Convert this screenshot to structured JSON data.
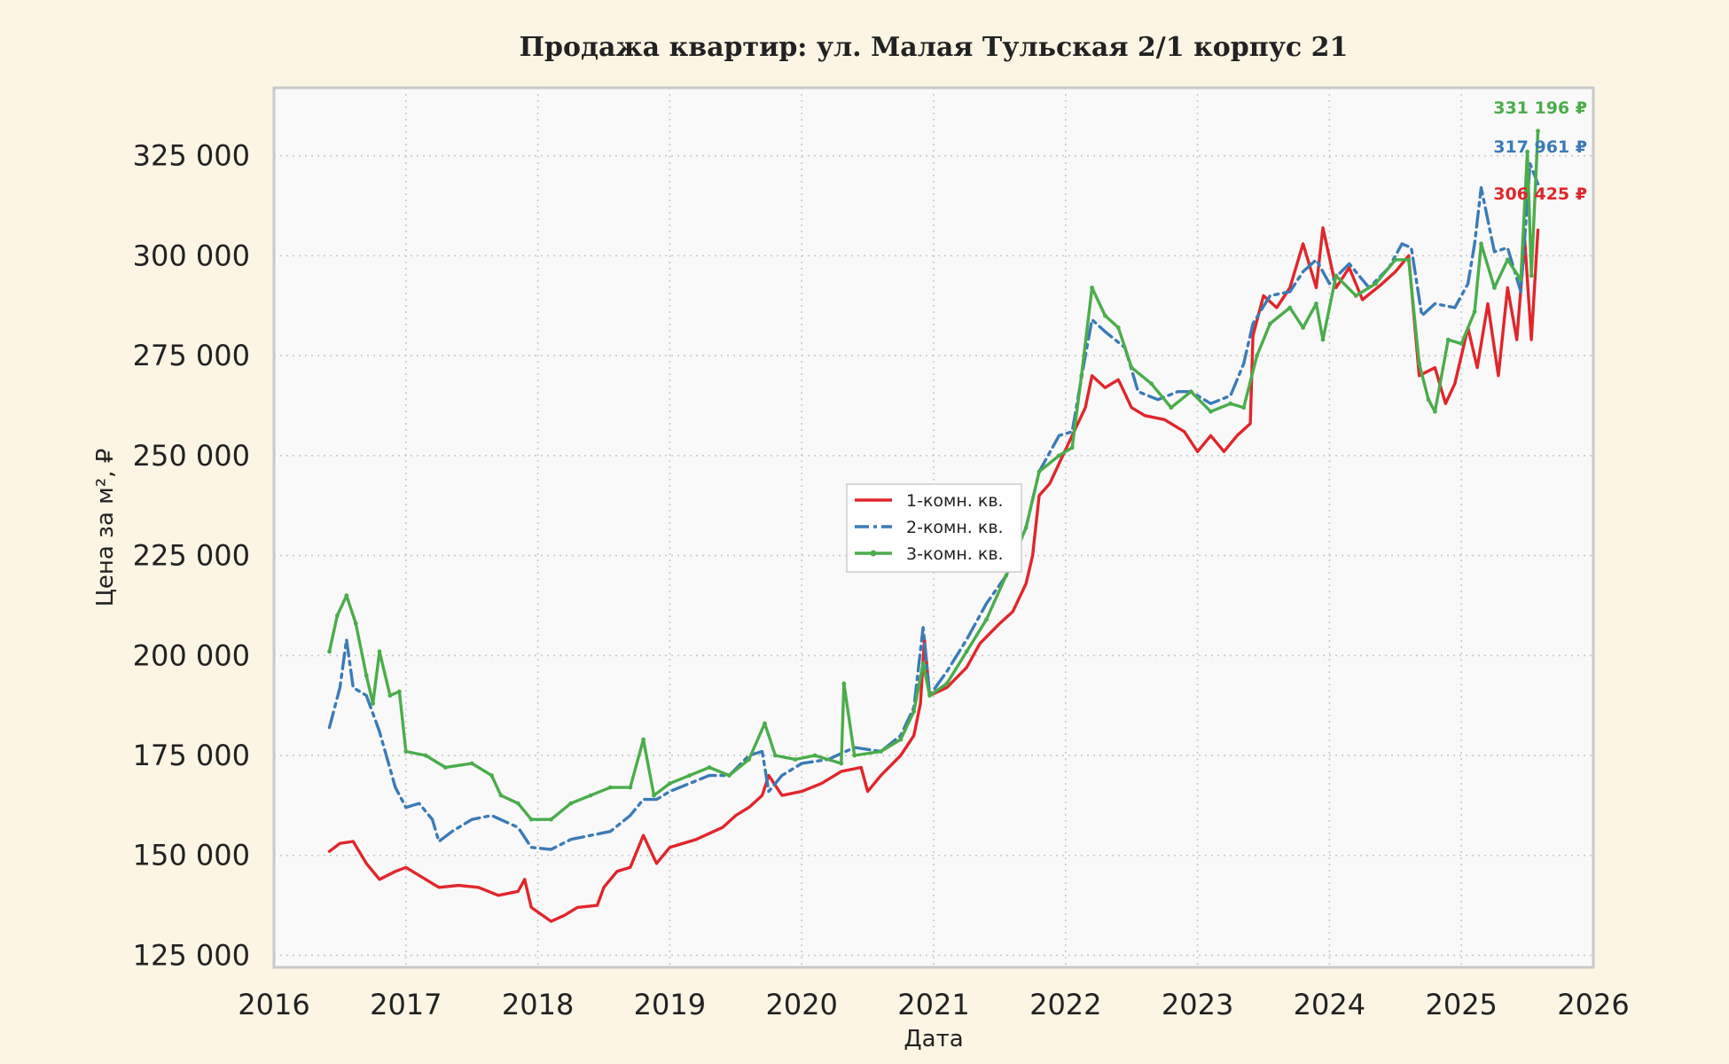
{
  "chart_data": {
    "type": "line",
    "title": "Продажа квартир: ул. Малая Тульская 2/1 корпус 21",
    "xlabel": "Дата",
    "ylabel": "Цена за м², ₽",
    "xlim": [
      2016,
      2026
    ],
    "ylim": [
      122000,
      342000
    ],
    "x_ticks": [
      2016,
      2017,
      2018,
      2019,
      2020,
      2021,
      2022,
      2023,
      2024,
      2025,
      2026
    ],
    "x_tick_labels": [
      "2016",
      "2017",
      "2018",
      "2019",
      "2020",
      "2021",
      "2022",
      "2023",
      "2024",
      "2025",
      "2026"
    ],
    "y_ticks": [
      125000,
      150000,
      175000,
      200000,
      225000,
      250000,
      275000,
      300000,
      325000
    ],
    "y_tick_labels": [
      "125 000",
      "150 000",
      "175 000",
      "200 000",
      "225 000",
      "250 000",
      "275 000",
      "300 000",
      "325 000"
    ],
    "grid": true,
    "legend_position": "center-left",
    "series": [
      {
        "name": "1-комн. кв.",
        "color": "#e0262b",
        "style": "solid",
        "end_label": "306 425 ₽",
        "points": [
          [
            2016.42,
            151000
          ],
          [
            2016.5,
            153000
          ],
          [
            2016.6,
            153500
          ],
          [
            2016.7,
            148000
          ],
          [
            2016.8,
            144000
          ],
          [
            2016.92,
            146000
          ],
          [
            2017.0,
            147000
          ],
          [
            2017.1,
            145000
          ],
          [
            2017.25,
            142000
          ],
          [
            2017.4,
            142500
          ],
          [
            2017.55,
            142000
          ],
          [
            2017.7,
            140000
          ],
          [
            2017.85,
            141000
          ],
          [
            2017.9,
            144000
          ],
          [
            2017.95,
            137000
          ],
          [
            2018.1,
            133500
          ],
          [
            2018.2,
            135000
          ],
          [
            2018.3,
            137000
          ],
          [
            2018.45,
            137500
          ],
          [
            2018.5,
            142000
          ],
          [
            2018.6,
            146000
          ],
          [
            2018.7,
            147000
          ],
          [
            2018.8,
            155000
          ],
          [
            2018.9,
            148000
          ],
          [
            2019.0,
            152000
          ],
          [
            2019.2,
            154000
          ],
          [
            2019.4,
            157000
          ],
          [
            2019.5,
            160000
          ],
          [
            2019.6,
            162000
          ],
          [
            2019.7,
            165000
          ],
          [
            2019.75,
            170000
          ],
          [
            2019.85,
            165000
          ],
          [
            2020.0,
            166000
          ],
          [
            2020.15,
            168000
          ],
          [
            2020.3,
            171000
          ],
          [
            2020.45,
            172000
          ],
          [
            2020.5,
            166000
          ],
          [
            2020.6,
            170000
          ],
          [
            2020.75,
            175000
          ],
          [
            2020.85,
            180000
          ],
          [
            2020.9,
            188000
          ],
          [
            2020.93,
            204000
          ],
          [
            2020.97,
            190000
          ],
          [
            2021.1,
            192000
          ],
          [
            2021.25,
            197000
          ],
          [
            2021.35,
            203000
          ],
          [
            2021.5,
            208000
          ],
          [
            2021.6,
            211000
          ],
          [
            2021.7,
            218000
          ],
          [
            2021.75,
            225000
          ],
          [
            2021.8,
            240000
          ],
          [
            2021.88,
            243000
          ],
          [
            2021.95,
            248000
          ],
          [
            2022.05,
            255000
          ],
          [
            2022.15,
            262000
          ],
          [
            2022.2,
            270000
          ],
          [
            2022.3,
            267000
          ],
          [
            2022.4,
            269000
          ],
          [
            2022.5,
            262000
          ],
          [
            2022.6,
            260000
          ],
          [
            2022.75,
            259000
          ],
          [
            2022.9,
            256000
          ],
          [
            2023.0,
            251000
          ],
          [
            2023.1,
            255000
          ],
          [
            2023.2,
            251000
          ],
          [
            2023.3,
            255000
          ],
          [
            2023.4,
            258000
          ],
          [
            2023.42,
            280000
          ],
          [
            2023.5,
            290000
          ],
          [
            2023.6,
            287000
          ],
          [
            2023.7,
            292000
          ],
          [
            2023.8,
            303000
          ],
          [
            2023.9,
            292000
          ],
          [
            2023.95,
            307000
          ],
          [
            2024.05,
            292000
          ],
          [
            2024.15,
            297000
          ],
          [
            2024.25,
            289000
          ],
          [
            2024.4,
            293000
          ],
          [
            2024.5,
            296000
          ],
          [
            2024.6,
            300000
          ],
          [
            2024.68,
            270000
          ],
          [
            2024.8,
            272000
          ],
          [
            2024.88,
            263000
          ],
          [
            2024.95,
            268000
          ],
          [
            2025.05,
            282000
          ],
          [
            2025.12,
            272000
          ],
          [
            2025.2,
            288000
          ],
          [
            2025.28,
            270000
          ],
          [
            2025.35,
            292000
          ],
          [
            2025.42,
            279000
          ],
          [
            2025.48,
            304000
          ],
          [
            2025.53,
            279000
          ],
          [
            2025.58,
            306425
          ]
        ]
      },
      {
        "name": "2-комн. кв.",
        "color": "#3a7bb7",
        "style": "dashdot",
        "end_label": "317 961 ₽",
        "points": [
          [
            2016.42,
            182000
          ],
          [
            2016.5,
            192000
          ],
          [
            2016.55,
            204000
          ],
          [
            2016.6,
            192000
          ],
          [
            2016.7,
            190000
          ],
          [
            2016.8,
            181000
          ],
          [
            2016.92,
            167000
          ],
          [
            2017.0,
            162000
          ],
          [
            2017.1,
            163000
          ],
          [
            2017.2,
            159000
          ],
          [
            2017.25,
            153500
          ],
          [
            2017.35,
            156000
          ],
          [
            2017.5,
            159000
          ],
          [
            2017.65,
            160000
          ],
          [
            2017.85,
            157000
          ],
          [
            2017.95,
            152000
          ],
          [
            2018.1,
            151500
          ],
          [
            2018.25,
            154000
          ],
          [
            2018.4,
            155000
          ],
          [
            2018.55,
            156000
          ],
          [
            2018.7,
            160000
          ],
          [
            2018.8,
            164000
          ],
          [
            2018.9,
            164000
          ],
          [
            2019.0,
            166000
          ],
          [
            2019.15,
            168000
          ],
          [
            2019.3,
            170000
          ],
          [
            2019.45,
            170000
          ],
          [
            2019.6,
            175000
          ],
          [
            2019.7,
            176000
          ],
          [
            2019.75,
            166000
          ],
          [
            2019.85,
            170000
          ],
          [
            2020.0,
            173000
          ],
          [
            2020.2,
            174000
          ],
          [
            2020.4,
            177000
          ],
          [
            2020.6,
            176000
          ],
          [
            2020.75,
            180000
          ],
          [
            2020.85,
            187000
          ],
          [
            2020.92,
            207000
          ],
          [
            2020.97,
            190000
          ],
          [
            2021.1,
            196000
          ],
          [
            2021.25,
            204000
          ],
          [
            2021.4,
            213000
          ],
          [
            2021.55,
            220000
          ],
          [
            2021.7,
            232000
          ],
          [
            2021.8,
            246000
          ],
          [
            2021.95,
            255000
          ],
          [
            2022.05,
            256000
          ],
          [
            2022.15,
            275000
          ],
          [
            2022.2,
            284000
          ],
          [
            2022.3,
            281000
          ],
          [
            2022.45,
            277000
          ],
          [
            2022.55,
            266000
          ],
          [
            2022.7,
            264000
          ],
          [
            2022.85,
            266000
          ],
          [
            2022.95,
            266000
          ],
          [
            2023.1,
            263000
          ],
          [
            2023.25,
            265000
          ],
          [
            2023.35,
            273000
          ],
          [
            2023.42,
            283000
          ],
          [
            2023.55,
            290000
          ],
          [
            2023.7,
            291000
          ],
          [
            2023.8,
            296000
          ],
          [
            2023.9,
            299000
          ],
          [
            2024.0,
            293000
          ],
          [
            2024.15,
            298000
          ],
          [
            2024.3,
            292000
          ],
          [
            2024.45,
            297000
          ],
          [
            2024.55,
            303000
          ],
          [
            2024.62,
            302000
          ],
          [
            2024.7,
            285000
          ],
          [
            2024.8,
            288000
          ],
          [
            2024.95,
            287000
          ],
          [
            2025.05,
            293000
          ],
          [
            2025.1,
            303000
          ],
          [
            2025.15,
            317000
          ],
          [
            2025.25,
            301000
          ],
          [
            2025.35,
            302000
          ],
          [
            2025.45,
            291000
          ],
          [
            2025.52,
            323000
          ],
          [
            2025.58,
            317961
          ]
        ]
      },
      {
        "name": "3-комн. кв.",
        "color": "#4aad4a",
        "style": "solid-marker",
        "end_label": "331 196 ₽",
        "points": [
          [
            2016.42,
            201000
          ],
          [
            2016.48,
            210000
          ],
          [
            2016.55,
            215000
          ],
          [
            2016.62,
            208000
          ],
          [
            2016.7,
            195000
          ],
          [
            2016.75,
            188000
          ],
          [
            2016.8,
            201000
          ],
          [
            2016.88,
            190000
          ],
          [
            2016.95,
            191000
          ],
          [
            2017.0,
            176000
          ],
          [
            2017.15,
            175000
          ],
          [
            2017.3,
            172000
          ],
          [
            2017.5,
            173000
          ],
          [
            2017.65,
            170000
          ],
          [
            2017.72,
            165000
          ],
          [
            2017.85,
            163000
          ],
          [
            2017.95,
            159000
          ],
          [
            2018.1,
            159000
          ],
          [
            2018.25,
            163000
          ],
          [
            2018.4,
            165000
          ],
          [
            2018.55,
            167000
          ],
          [
            2018.7,
            167000
          ],
          [
            2018.8,
            179000
          ],
          [
            2018.88,
            165000
          ],
          [
            2019.0,
            168000
          ],
          [
            2019.15,
            170000
          ],
          [
            2019.3,
            172000
          ],
          [
            2019.45,
            170000
          ],
          [
            2019.6,
            174000
          ],
          [
            2019.72,
            183000
          ],
          [
            2019.8,
            175000
          ],
          [
            2019.95,
            174000
          ],
          [
            2020.1,
            175000
          ],
          [
            2020.3,
            173000
          ],
          [
            2020.32,
            193000
          ],
          [
            2020.4,
            175000
          ],
          [
            2020.6,
            176000
          ],
          [
            2020.75,
            179000
          ],
          [
            2020.85,
            186000
          ],
          [
            2020.92,
            198000
          ],
          [
            2020.97,
            190000
          ],
          [
            2021.1,
            193000
          ],
          [
            2021.25,
            201000
          ],
          [
            2021.4,
            209000
          ],
          [
            2021.55,
            220000
          ],
          [
            2021.7,
            232000
          ],
          [
            2021.8,
            246000
          ],
          [
            2021.95,
            250000
          ],
          [
            2022.05,
            252000
          ],
          [
            2022.12,
            270000
          ],
          [
            2022.2,
            292000
          ],
          [
            2022.3,
            285000
          ],
          [
            2022.4,
            282000
          ],
          [
            2022.5,
            272000
          ],
          [
            2022.65,
            268000
          ],
          [
            2022.8,
            262000
          ],
          [
            2022.95,
            266000
          ],
          [
            2023.1,
            261000
          ],
          [
            2023.25,
            263000
          ],
          [
            2023.35,
            262000
          ],
          [
            2023.45,
            275000
          ],
          [
            2023.55,
            283000
          ],
          [
            2023.7,
            287000
          ],
          [
            2023.8,
            282000
          ],
          [
            2023.9,
            288000
          ],
          [
            2023.95,
            279000
          ],
          [
            2024.05,
            295000
          ],
          [
            2024.2,
            290000
          ],
          [
            2024.35,
            293000
          ],
          [
            2024.5,
            299000
          ],
          [
            2024.6,
            299000
          ],
          [
            2024.68,
            273000
          ],
          [
            2024.75,
            264000
          ],
          [
            2024.8,
            261000
          ],
          [
            2024.9,
            279000
          ],
          [
            2025.0,
            278000
          ],
          [
            2025.1,
            286000
          ],
          [
            2025.15,
            303000
          ],
          [
            2025.25,
            292000
          ],
          [
            2025.35,
            299000
          ],
          [
            2025.45,
            294000
          ],
          [
            2025.5,
            326000
          ],
          [
            2025.53,
            295000
          ],
          [
            2025.58,
            331196
          ]
        ]
      }
    ]
  }
}
